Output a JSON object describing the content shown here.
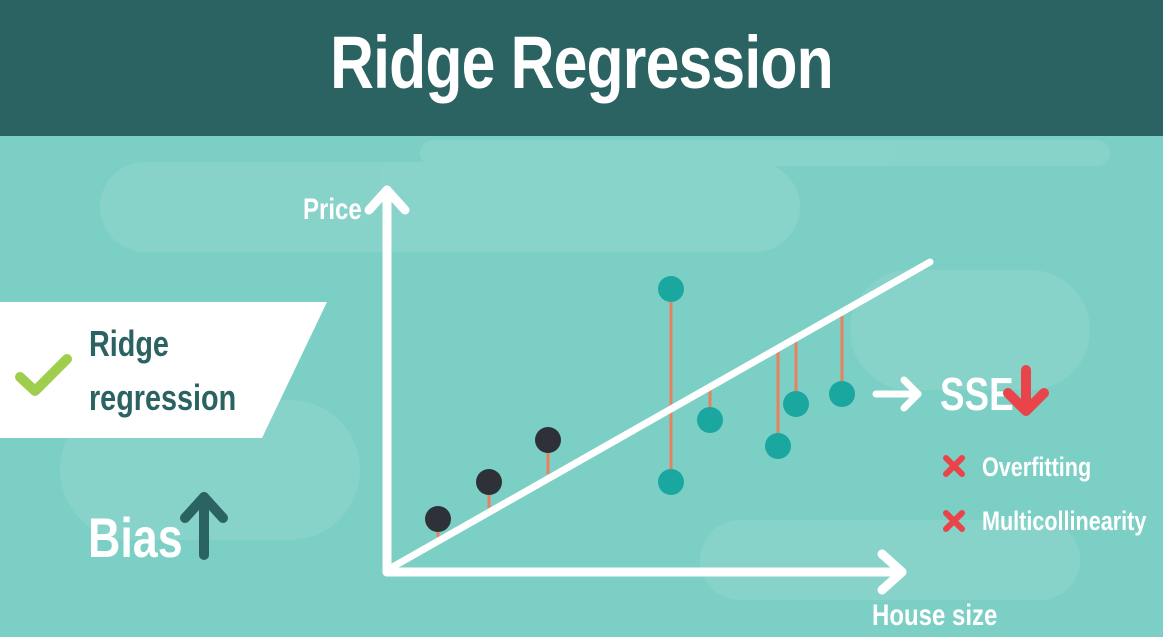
{
  "title": "Ridge Regression",
  "chart": {
    "y_axis_label": "Price",
    "x_axis_label": "House size"
  },
  "method_card": {
    "line1": "Ridge",
    "line2": "regression",
    "icon": "check-icon"
  },
  "bias": {
    "label": "Bias",
    "direction_icon": "arrow-up-icon"
  },
  "sse": {
    "label": "SSE",
    "direction_icon": "arrow-down-icon"
  },
  "problems": [
    {
      "label": "Overfitting",
      "icon": "cross-icon"
    },
    {
      "label": "Multicollinearity",
      "icon": "cross-icon"
    }
  ],
  "colors": {
    "header": "#2b6362",
    "background": "#7ccfc5",
    "dark_point": "#2e3238",
    "teal_point": "#1aa79f",
    "residual": "#e8825e",
    "check": "#9fcd4e",
    "down_arrow": "#e9444a",
    "cross": "#e9444a",
    "dark_text": "#2b6362"
  }
}
